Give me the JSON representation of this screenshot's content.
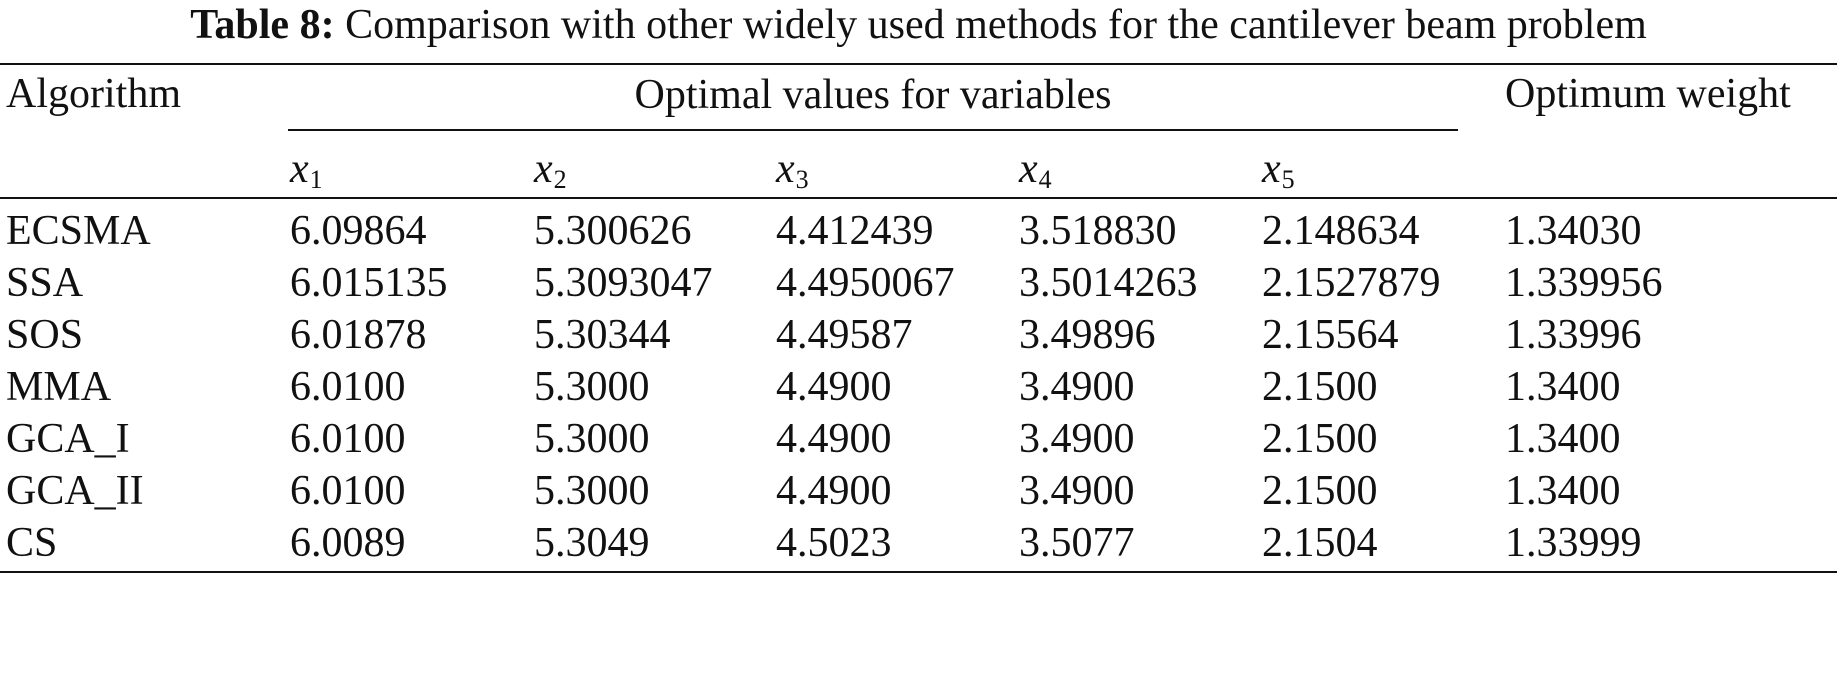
{
  "caption": {
    "label": "Table 8:",
    "text": "Comparison with other widely used methods for the cantilever beam problem"
  },
  "table": {
    "header_algorithm": "Algorithm",
    "header_group": "Optimal values for variables",
    "header_weight": "Optimum weight",
    "variables": [
      {
        "base": "x",
        "sub": "1"
      },
      {
        "base": "x",
        "sub": "2"
      },
      {
        "base": "x",
        "sub": "3"
      },
      {
        "base": "x",
        "sub": "4"
      },
      {
        "base": "x",
        "sub": "5"
      }
    ],
    "rows": [
      {
        "algorithm": "ECSMA",
        "x1": "6.09864",
        "x2": "5.300626",
        "x3": "4.412439",
        "x4": "3.518830",
        "x5": "2.148634",
        "weight": "1.34030"
      },
      {
        "algorithm": "SSA",
        "x1": "6.015135",
        "x2": "5.3093047",
        "x3": "4.4950067",
        "x4": "3.5014263",
        "x5": "2.1527879",
        "weight": "1.339956"
      },
      {
        "algorithm": "SOS",
        "x1": "6.01878",
        "x2": "5.30344",
        "x3": "4.49587",
        "x4": "3.49896",
        "x5": "2.15564",
        "weight": "1.33996"
      },
      {
        "algorithm": "MMA",
        "x1": "6.0100",
        "x2": "5.3000",
        "x3": "4.4900",
        "x4": "3.4900",
        "x5": "2.1500",
        "weight": "1.3400"
      },
      {
        "algorithm": "GCA_I",
        "x1": "6.0100",
        "x2": "5.3000",
        "x3": "4.4900",
        "x4": "3.4900",
        "x5": "2.1500",
        "weight": "1.3400"
      },
      {
        "algorithm": "GCA_II",
        "x1": "6.0100",
        "x2": "5.3000",
        "x3": "4.4900",
        "x4": "3.4900",
        "x5": "2.1500",
        "weight": "1.3400"
      },
      {
        "algorithm": "CS",
        "x1": "6.0089",
        "x2": "5.3049",
        "x3": "4.5023",
        "x4": "3.5077",
        "x5": "2.1504",
        "weight": "1.33999"
      }
    ]
  }
}
